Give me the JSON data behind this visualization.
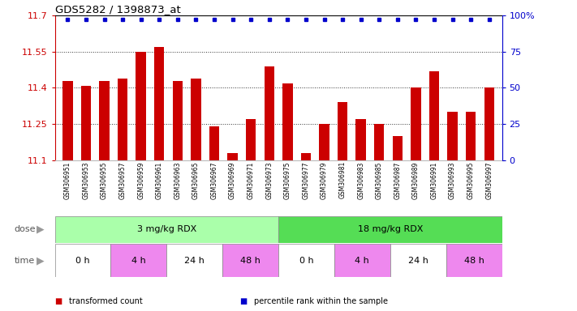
{
  "title": "GDS5282 / 1398873_at",
  "samples": [
    "GSM306951",
    "GSM306953",
    "GSM306955",
    "GSM306957",
    "GSM306959",
    "GSM306961",
    "GSM306963",
    "GSM306965",
    "GSM306967",
    "GSM306969",
    "GSM306971",
    "GSM306973",
    "GSM306975",
    "GSM306977",
    "GSM306979",
    "GSM306981",
    "GSM306983",
    "GSM306985",
    "GSM306987",
    "GSM306989",
    "GSM306991",
    "GSM306993",
    "GSM306995",
    "GSM306997"
  ],
  "values": [
    11.43,
    11.41,
    11.43,
    11.44,
    11.55,
    11.57,
    11.43,
    11.44,
    11.24,
    11.13,
    11.27,
    11.49,
    11.42,
    11.13,
    11.25,
    11.34,
    11.27,
    11.25,
    11.2,
    11.4,
    11.47,
    11.3,
    11.3,
    11.4
  ],
  "bar_color": "#cc0000",
  "dot_color": "#0000cc",
  "ylim": [
    11.1,
    11.7
  ],
  "yticks_left": [
    11.1,
    11.25,
    11.4,
    11.55,
    11.7
  ],
  "yticks_right": [
    0,
    25,
    50,
    75,
    100
  ],
  "right_tick_labels": [
    "0",
    "25",
    "50",
    "75",
    "100%"
  ],
  "ylabel_right_color": "#0000cc",
  "ylabel_left_color": "#cc0000",
  "dose_groups": [
    {
      "label": "3 mg/kg RDX",
      "start": 0,
      "end": 12,
      "color": "#aaffaa"
    },
    {
      "label": "18 mg/kg RDX",
      "start": 12,
      "end": 24,
      "color": "#55dd55"
    }
  ],
  "time_groups": [
    {
      "label": "0 h",
      "start": 0,
      "end": 3,
      "color": "#ffffff"
    },
    {
      "label": "4 h",
      "start": 3,
      "end": 6,
      "color": "#ee88ee"
    },
    {
      "label": "24 h",
      "start": 6,
      "end": 9,
      "color": "#ffffff"
    },
    {
      "label": "48 h",
      "start": 9,
      "end": 12,
      "color": "#ee88ee"
    },
    {
      "label": "0 h",
      "start": 12,
      "end": 15,
      "color": "#ffffff"
    },
    {
      "label": "4 h",
      "start": 15,
      "end": 18,
      "color": "#ee88ee"
    },
    {
      "label": "24 h",
      "start": 18,
      "end": 21,
      "color": "#ffffff"
    },
    {
      "label": "48 h",
      "start": 21,
      "end": 24,
      "color": "#ee88ee"
    }
  ],
  "legend_items": [
    {
      "label": "transformed count",
      "color": "#cc0000"
    },
    {
      "label": "percentile rank within the sample",
      "color": "#0000cc"
    }
  ],
  "dose_label": "dose",
  "time_label": "time"
}
